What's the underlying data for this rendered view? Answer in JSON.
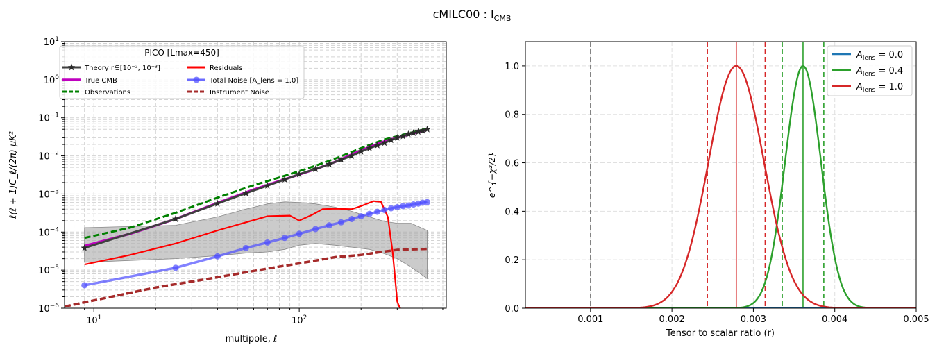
{
  "suptitle": "cMILC00 : I",
  "suptitle_sub": "CMB",
  "chart_data": [
    {
      "type": "line",
      "xscale": "log",
      "yscale": "log",
      "xlabel": "multipole, ℓ",
      "ylabel": "ℓ(ℓ + 1)C_ℓ/(2π)  μK²",
      "xlim": [
        7.2,
        520
      ],
      "ylim": [
        1e-06,
        10
      ],
      "x_ticks": [
        {
          "value": 10,
          "base": "10",
          "exp": "1"
        },
        {
          "value": 100,
          "base": "10",
          "exp": "2"
        }
      ],
      "y_ticks": [
        {
          "value": 1e-06,
          "base": "10",
          "exp": "−6"
        },
        {
          "value": 1e-05,
          "base": "10",
          "exp": "−5"
        },
        {
          "value": 0.0001,
          "base": "10",
          "exp": "−4"
        },
        {
          "value": 0.001,
          "base": "10",
          "exp": "−3"
        },
        {
          "value": 0.01,
          "base": "10",
          "exp": "−2"
        },
        {
          "value": 0.1,
          "base": "10",
          "exp": "−1"
        },
        {
          "value": 1,
          "base": "10",
          "exp": "0"
        },
        {
          "value": 10,
          "base": "10",
          "exp": "1"
        }
      ],
      "grid": true,
      "legend": {
        "title": "PICO [Lmax=450]",
        "placement": "upper-left",
        "entries": [
          {
            "label": "Theory r∈[10⁻², 10⁻³]",
            "color": "#404040",
            "style": "solid-star"
          },
          {
            "label": "Residuals",
            "color": "#ff0000",
            "style": "solid"
          },
          {
            "label": "True CMB",
            "color": "#bf00bf",
            "style": "solid-thick"
          },
          {
            "label": "Total Noise [A_lens = 1.0]",
            "color": "#6b6bff",
            "style": "solid-circle"
          },
          {
            "label": "Observations",
            "color": "#008000",
            "style": "dashed"
          },
          {
            "label": "Instrument Noise",
            "color": "#a52a2a",
            "style": "dashed"
          }
        ]
      },
      "band": {
        "color": "#a9a9a9",
        "x": [
          9,
          25,
          40,
          55,
          70,
          85,
          100,
          120,
          150,
          180,
          220,
          260,
          300,
          350,
          420
        ],
        "upper": [
          0.00013,
          0.00015,
          0.00025,
          0.0004,
          0.00055,
          0.00062,
          0.0006,
          0.00055,
          0.00045,
          0.00035,
          0.00025,
          0.00019,
          0.00017,
          0.00017,
          0.00011
        ],
        "lower": [
          1.6e-05,
          2e-05,
          2.4e-05,
          2.8e-05,
          3e-05,
          3.5e-05,
          4.5e-05,
          5e-05,
          4.5e-05,
          4e-05,
          3.5e-05,
          2.7e-05,
          2e-05,
          1.2e-05,
          6e-06
        ]
      },
      "series": [
        {
          "name": "Observations",
          "color": "#008000",
          "dash": "dashed",
          "width": 3,
          "x": [
            9,
            15,
            25,
            40,
            60,
            90,
            120,
            150,
            200,
            260,
            320,
            420
          ],
          "y": [
            7e-05,
            0.00013,
            0.00032,
            0.0008,
            0.0017,
            0.0033,
            0.0055,
            0.0085,
            0.016,
            0.027,
            0.036,
            0.052
          ]
        },
        {
          "name": "True CMB",
          "color": "#bf00bf",
          "dash": "solid",
          "width": 3.5,
          "x": [
            9,
            15,
            25,
            40,
            60,
            90,
            120,
            150,
            200,
            260,
            320,
            420
          ],
          "y": [
            4.3e-05,
            9e-05,
            0.00022,
            0.00058,
            0.0013,
            0.0027,
            0.0045,
            0.007,
            0.014,
            0.024,
            0.033,
            0.049
          ]
        },
        {
          "name": "Theory",
          "color": "#404040",
          "dash": "solid",
          "width": 3,
          "marker": "star",
          "x": [
            9,
            25,
            40,
            55,
            70,
            85,
            100,
            120,
            140,
            160,
            180,
            200,
            220,
            240,
            260,
            280,
            300,
            320,
            340,
            360,
            380,
            400,
            420
          ],
          "y": [
            3.8e-05,
            0.00022,
            0.00056,
            0.00105,
            0.00165,
            0.0024,
            0.0033,
            0.0045,
            0.006,
            0.008,
            0.01,
            0.013,
            0.016,
            0.019,
            0.022,
            0.026,
            0.03,
            0.033,
            0.037,
            0.04,
            0.043,
            0.046,
            0.05
          ]
        },
        {
          "name": "Residuals",
          "color": "#ff0000",
          "dash": "solid",
          "width": 2.2,
          "x": [
            9,
            15,
            25,
            40,
            55,
            70,
            90,
            100,
            115,
            130,
            150,
            180,
            200,
            230,
            250,
            270,
            285,
            295,
            300,
            305,
            310,
            312
          ],
          "y": [
            1.4e-05,
            2.5e-05,
            5e-05,
            0.00011,
            0.00018,
            0.00026,
            0.00027,
            0.0002,
            0.00028,
            0.0004,
            0.00041,
            0.0004,
            0.00048,
            0.00065,
            0.00062,
            0.00025,
            3e-05,
            4e-06,
            1.5e-06,
            1.2e-06,
            1e-06,
            1e-06
          ]
        },
        {
          "name": "Total Noise",
          "color": "#4d4dff",
          "dash": "solid",
          "width": 3.5,
          "opacity": 0.7,
          "marker": "circle",
          "x": [
            9,
            25,
            40,
            55,
            70,
            85,
            100,
            120,
            140,
            160,
            180,
            200,
            220,
            240,
            260,
            280,
            300,
            320,
            340,
            360,
            380,
            400,
            420
          ],
          "y": [
            4e-06,
            1.15e-05,
            2.3e-05,
            3.8e-05,
            5.3e-05,
            7e-05,
            9e-05,
            0.00012,
            0.00015,
            0.00018,
            0.00022,
            0.00026,
            0.0003,
            0.00034,
            0.00038,
            0.00042,
            0.00045,
            0.00048,
            0.0005,
            0.00053,
            0.00056,
            0.00059,
            0.00061
          ]
        },
        {
          "name": "Instrument Noise",
          "color": "#a52a2a",
          "dash": "dashed",
          "width": 3.5,
          "x": [
            7.2,
            10,
            20,
            40,
            70,
            100,
            150,
            200,
            250,
            300,
            350,
            420
          ],
          "y": [
            1.1e-06,
            1.6e-06,
            3.5e-06,
            6.5e-06,
            1.1e-05,
            1.5e-05,
            2.2e-05,
            2.5e-05,
            3e-05,
            3.4e-05,
            3.5e-05,
            3.6e-05
          ]
        }
      ]
    },
    {
      "type": "line",
      "xlabel": "Tensor to scalar ratio (r)",
      "ylabel": "e^{−χ²/2}",
      "xlim": [
        0.0002,
        0.005
      ],
      "ylim": [
        0,
        1.1
      ],
      "x_ticks": [
        0.001,
        0.002,
        0.003,
        0.004,
        0.005
      ],
      "x_tick_labels": [
        "0.001",
        "0.002",
        "0.003",
        "0.004",
        "0.005"
      ],
      "y_ticks": [
        0.0,
        0.2,
        0.4,
        0.6,
        0.8,
        1.0
      ],
      "y_tick_labels": [
        "0.0",
        "0.2",
        "0.4",
        "0.6",
        "0.8",
        "1.0"
      ],
      "grid": true,
      "legend": {
        "placement": "upper-right",
        "entries": [
          {
            "label": "A_lens = 0.0",
            "prefix": "A",
            "sub": "lens",
            "value": " = 0.0",
            "color": "#1f77b4"
          },
          {
            "label": "A_lens = 0.4",
            "prefix": "A",
            "sub": "lens",
            "value": " = 0.4",
            "color": "#2ca02c"
          },
          {
            "label": "A_lens = 1.0",
            "prefix": "A",
            "sub": "lens",
            "value": " = 1.0",
            "color": "#d62728"
          }
        ]
      },
      "curves": [
        {
          "name": "A_lens = 0.0",
          "color": "#1f77b4",
          "shape": "flat-zero"
        },
        {
          "name": "A_lens = 0.4",
          "color": "#2ca02c",
          "mean": 0.00361,
          "sigma": 0.00022
        },
        {
          "name": "A_lens = 1.0",
          "color": "#d62728",
          "mean": 0.00279,
          "sigma": 0.00034
        }
      ],
      "vlines": [
        {
          "x": 0.001,
          "color": "#7f7f7f",
          "style": "dashed"
        },
        {
          "x": 0.002435,
          "color": "#d62728",
          "style": "dashed"
        },
        {
          "x": 0.00279,
          "color": "#d62728",
          "style": "solid"
        },
        {
          "x": 0.003145,
          "color": "#d62728",
          "style": "dashed"
        },
        {
          "x": 0.003355,
          "color": "#2ca02c",
          "style": "dashed"
        },
        {
          "x": 0.00361,
          "color": "#2ca02c",
          "style": "solid"
        },
        {
          "x": 0.003865,
          "color": "#2ca02c",
          "style": "dashed"
        }
      ]
    }
  ]
}
